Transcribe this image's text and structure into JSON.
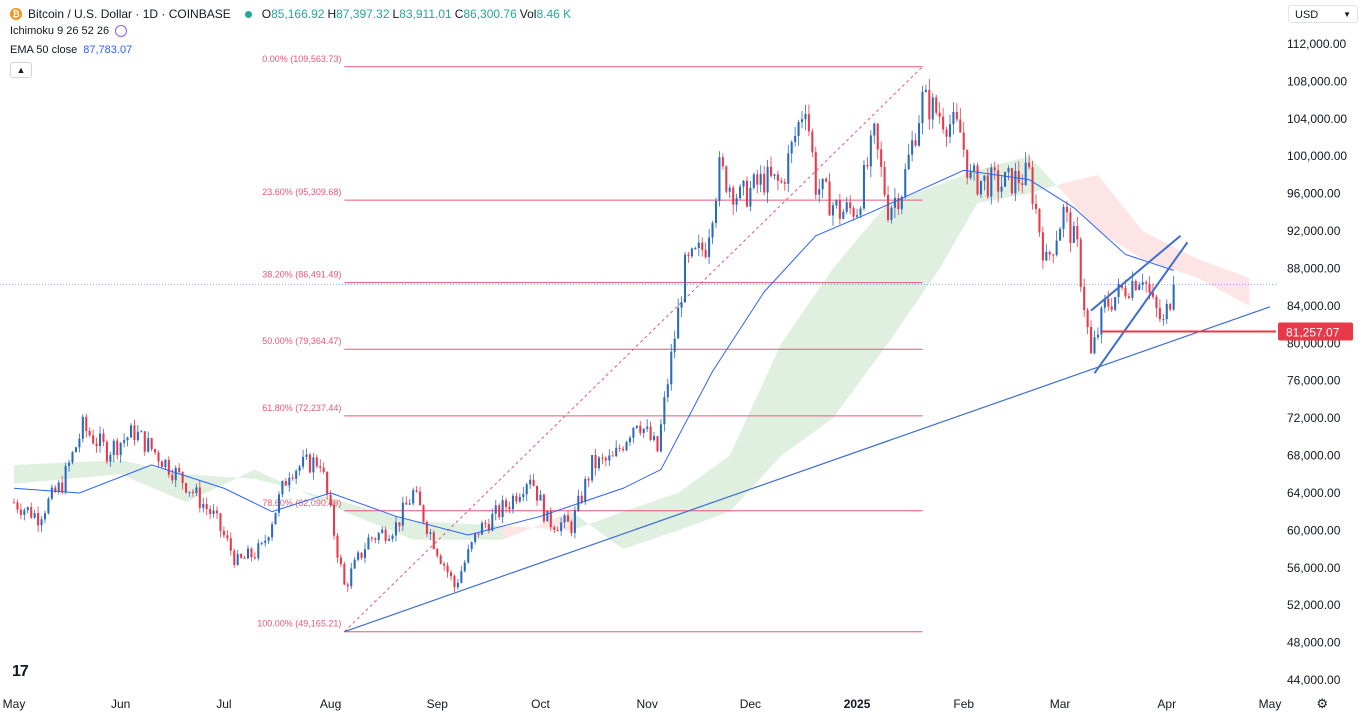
{
  "header": {
    "symbol_title": "Bitcoin / U.S. Dollar · 1D · COINBASE",
    "ohlc": [
      {
        "k": "O",
        "v": "85,166.92"
      },
      {
        "k": "H",
        "v": "87,397.32"
      },
      {
        "k": "L",
        "v": "83,911.01"
      },
      {
        "k": "C",
        "v": "86,300.76"
      },
      {
        "k": "Vol",
        "v": "8.46 K"
      }
    ],
    "indicator_1": "Ichimoku 9 26 52 26",
    "indicator_2_name": "EMA 50 close",
    "indicator_2_value": "87,783.07",
    "currency": "USD"
  },
  "icons": {
    "symbol_logo": "bitcoin-logo-icon",
    "status": "live-dot-icon",
    "refresh": "refresh-icon",
    "collapse": "chevron-up-icon",
    "dropdown": "chevron-down-icon",
    "brand": "tradingview-logo-icon",
    "settings": "gear-icon"
  },
  "colors": {
    "up": "#2a6bbd",
    "down": "#e8394a",
    "fib": "#e8577a",
    "ema": "#2962ff",
    "trend": "#3d6ed0",
    "cloud_bull": "#d9ecda",
    "cloud_bear": "#fde0e0",
    "price_tag": "#e8394a"
  },
  "chart_data": {
    "type": "candlestick",
    "ylim": [
      43000,
      114000
    ],
    "ytick_values": [
      44000,
      48000,
      52000,
      56000,
      60000,
      64000,
      68000,
      72000,
      76000,
      80000,
      84000,
      88000,
      92000,
      96000,
      100000,
      104000,
      108000,
      112000
    ],
    "ytick_labels": [
      "44,000.00",
      "48,000.00",
      "52,000.00",
      "56,000.00",
      "60,000.00",
      "64,000.00",
      "68,000.00",
      "72,000.00",
      "76,000.00",
      "80,000.00",
      "84,000.00",
      "88,000.00",
      "92,000.00",
      "96,000.00",
      "100,000.00",
      "104,000.00",
      "108,000.00",
      "112,000.00"
    ],
    "xlim": [
      "2024-05-01",
      "2025-05-01"
    ],
    "x_labels": [
      {
        "date": "2024-05-01",
        "label": "May",
        "bold": false
      },
      {
        "date": "2024-06-01",
        "label": "Jun",
        "bold": false
      },
      {
        "date": "2024-07-01",
        "label": "Jul",
        "bold": false
      },
      {
        "date": "2024-08-01",
        "label": "Aug",
        "bold": false
      },
      {
        "date": "2024-09-01",
        "label": "Sep",
        "bold": false
      },
      {
        "date": "2024-10-01",
        "label": "Oct",
        "bold": false
      },
      {
        "date": "2024-11-01",
        "label": "Nov",
        "bold": false
      },
      {
        "date": "2024-12-01",
        "label": "Dec",
        "bold": false
      },
      {
        "date": "2025-01-01",
        "label": "2025",
        "bold": true
      },
      {
        "date": "2025-02-01",
        "label": "Feb",
        "bold": false
      },
      {
        "date": "2025-03-01",
        "label": "Mar",
        "bold": false
      },
      {
        "date": "2025-04-01",
        "label": "Apr",
        "bold": false
      },
      {
        "date": "2025-05-01",
        "label": "May",
        "bold": false
      }
    ],
    "close_path": [
      [
        "2024-05-01",
        63000
      ],
      [
        "2024-05-08",
        61500
      ],
      [
        "2024-05-15",
        65000
      ],
      [
        "2024-05-21",
        71000
      ],
      [
        "2024-05-28",
        68500
      ],
      [
        "2024-06-05",
        70500
      ],
      [
        "2024-06-12",
        68000
      ],
      [
        "2024-06-20",
        65000
      ],
      [
        "2024-06-28",
        61500
      ],
      [
        "2024-07-05",
        56500
      ],
      [
        "2024-07-12",
        58000
      ],
      [
        "2024-07-20",
        66500
      ],
      [
        "2024-07-29",
        67500
      ],
      [
        "2024-08-05",
        54000
      ],
      [
        "2024-08-12",
        59000
      ],
      [
        "2024-08-20",
        60500
      ],
      [
        "2024-08-25",
        64000
      ],
      [
        "2024-09-01",
        58000
      ],
      [
        "2024-09-06",
        54000
      ],
      [
        "2024-09-13",
        60000
      ],
      [
        "2024-09-22",
        63000
      ],
      [
        "2024-09-28",
        66000
      ],
      [
        "2024-10-03",
        61000
      ],
      [
        "2024-10-10",
        60500
      ],
      [
        "2024-10-16",
        67000
      ],
      [
        "2024-10-22",
        67500
      ],
      [
        "2024-10-29",
        72000
      ],
      [
        "2024-11-04",
        68500
      ],
      [
        "2024-11-07",
        76000
      ],
      [
        "2024-11-12",
        88000
      ],
      [
        "2024-11-18",
        90500
      ],
      [
        "2024-11-22",
        98500
      ],
      [
        "2024-11-28",
        95500
      ],
      [
        "2024-12-05",
        97500
      ],
      [
        "2024-12-10",
        97000
      ],
      [
        "2024-12-17",
        106000
      ],
      [
        "2024-12-20",
        97000
      ],
      [
        "2024-12-27",
        94000
      ],
      [
        "2025-01-01",
        94500
      ],
      [
        "2025-01-06",
        102000
      ],
      [
        "2025-01-10",
        94500
      ],
      [
        "2025-01-14",
        96500
      ],
      [
        "2025-01-20",
        106000
      ],
      [
        "2025-01-25",
        104500
      ],
      [
        "2025-01-31",
        102500
      ],
      [
        "2025-02-03",
        97500
      ],
      [
        "2025-02-12",
        97000
      ],
      [
        "2025-02-20",
        98000
      ],
      [
        "2025-02-25",
        88500
      ],
      [
        "2025-03-02",
        94000
      ],
      [
        "2025-03-06",
        90000
      ],
      [
        "2025-03-10",
        78500
      ],
      [
        "2025-03-14",
        84000
      ],
      [
        "2025-03-20",
        86000
      ],
      [
        "2025-03-25",
        87500
      ],
      [
        "2025-03-28",
        84000
      ],
      [
        "2025-03-31",
        82000
      ],
      [
        "2025-04-03",
        86300
      ]
    ],
    "ema50": [
      [
        "2024-05-01",
        64500
      ],
      [
        "2024-05-20",
        64000
      ],
      [
        "2024-06-10",
        67000
      ],
      [
        "2024-07-01",
        64500
      ],
      [
        "2024-07-15",
        62000
      ],
      [
        "2024-08-01",
        64000
      ],
      [
        "2024-08-20",
        61500
      ],
      [
        "2024-09-10",
        59500
      ],
      [
        "2024-10-01",
        61500
      ],
      [
        "2024-10-25",
        64500
      ],
      [
        "2024-11-05",
        66500
      ],
      [
        "2024-11-20",
        77000
      ],
      [
        "2024-12-05",
        85500
      ],
      [
        "2024-12-20",
        91500
      ],
      [
        "2025-01-05",
        94000
      ],
      [
        "2025-01-20",
        96500
      ],
      [
        "2025-02-01",
        98500
      ],
      [
        "2025-02-20",
        97500
      ],
      [
        "2025-03-05",
        94500
      ],
      [
        "2025-03-20",
        89500
      ],
      [
        "2025-04-03",
        87800
      ]
    ],
    "cloud": [
      {
        "date": "2024-05-01",
        "a": 67000,
        "b": 65000
      },
      {
        "date": "2024-06-01",
        "a": 67500,
        "b": 66000
      },
      {
        "date": "2024-06-20",
        "a": 66000,
        "b": 63000
      },
      {
        "date": "2024-07-10",
        "a": 65500,
        "b": 66500
      },
      {
        "date": "2024-08-05",
        "a": 63000,
        "b": 62000
      },
      {
        "date": "2024-08-25",
        "a": 61000,
        "b": 59000
      },
      {
        "date": "2024-09-20",
        "a": 60500,
        "b": 59000
      },
      {
        "date": "2024-10-10",
        "a": 60000,
        "b": 62000
      },
      {
        "date": "2024-10-25",
        "a": 62000,
        "b": 58000
      },
      {
        "date": "2024-11-10",
        "a": 64000,
        "b": 60000
      },
      {
        "date": "2024-11-25",
        "a": 68000,
        "b": 62000
      },
      {
        "date": "2024-12-10",
        "a": 80000,
        "b": 68000
      },
      {
        "date": "2024-12-25",
        "a": 88000,
        "b": 72000
      },
      {
        "date": "2025-01-10",
        "a": 95000,
        "b": 80000
      },
      {
        "date": "2025-01-25",
        "a": 97000,
        "b": 88000
      },
      {
        "date": "2025-02-05",
        "a": 98500,
        "b": 95000
      },
      {
        "date": "2025-02-20",
        "a": 100000,
        "b": 96000
      },
      {
        "date": "2025-03-01",
        "a": 96500,
        "b": 97000
      },
      {
        "date": "2025-03-12",
        "a": 92000,
        "b": 98000
      },
      {
        "date": "2025-03-25",
        "a": 89000,
        "b": 92000
      },
      {
        "date": "2025-04-10",
        "a": 87000,
        "b": 89000
      },
      {
        "date": "2025-04-25",
        "a": 84000,
        "b": 87000
      }
    ],
    "fibonacci": {
      "start": "2024-08-05",
      "end": "2025-01-20",
      "levels": [
        {
          "label": "0.00% (109,563.73)",
          "value": 109563.73
        },
        {
          "label": "23.60% (95,309.68)",
          "value": 95309.68
        },
        {
          "label": "38.20% (86,491.49)",
          "value": 86491.49
        },
        {
          "label": "50.00% (79,364.47)",
          "value": 79364.47
        },
        {
          "label": "61.80% (72,237.44)",
          "value": 72237.44
        },
        {
          "label": "78.60% (62,090.49)",
          "value": 62090.49
        },
        {
          "label": "100.00% (49,165.21)",
          "value": 49165.21
        }
      ]
    },
    "trendline": {
      "from": [
        "2024-08-05",
        49165
      ],
      "to": [
        "2025-05-01",
        83900
      ]
    },
    "wedge_upper": {
      "from": [
        "2025-03-10",
        83500
      ],
      "to": [
        "2025-04-05",
        91500
      ]
    },
    "wedge_lower": {
      "from": [
        "2025-03-11",
        76800
      ],
      "to": [
        "2025-04-07",
        90800
      ]
    },
    "support_line": {
      "from": "2025-03-13",
      "to": "2025-04-17",
      "value": 81257.07
    },
    "current_price_line": 86300.76,
    "price_tag": {
      "label": "81,257.07",
      "value": 81257.07
    }
  }
}
